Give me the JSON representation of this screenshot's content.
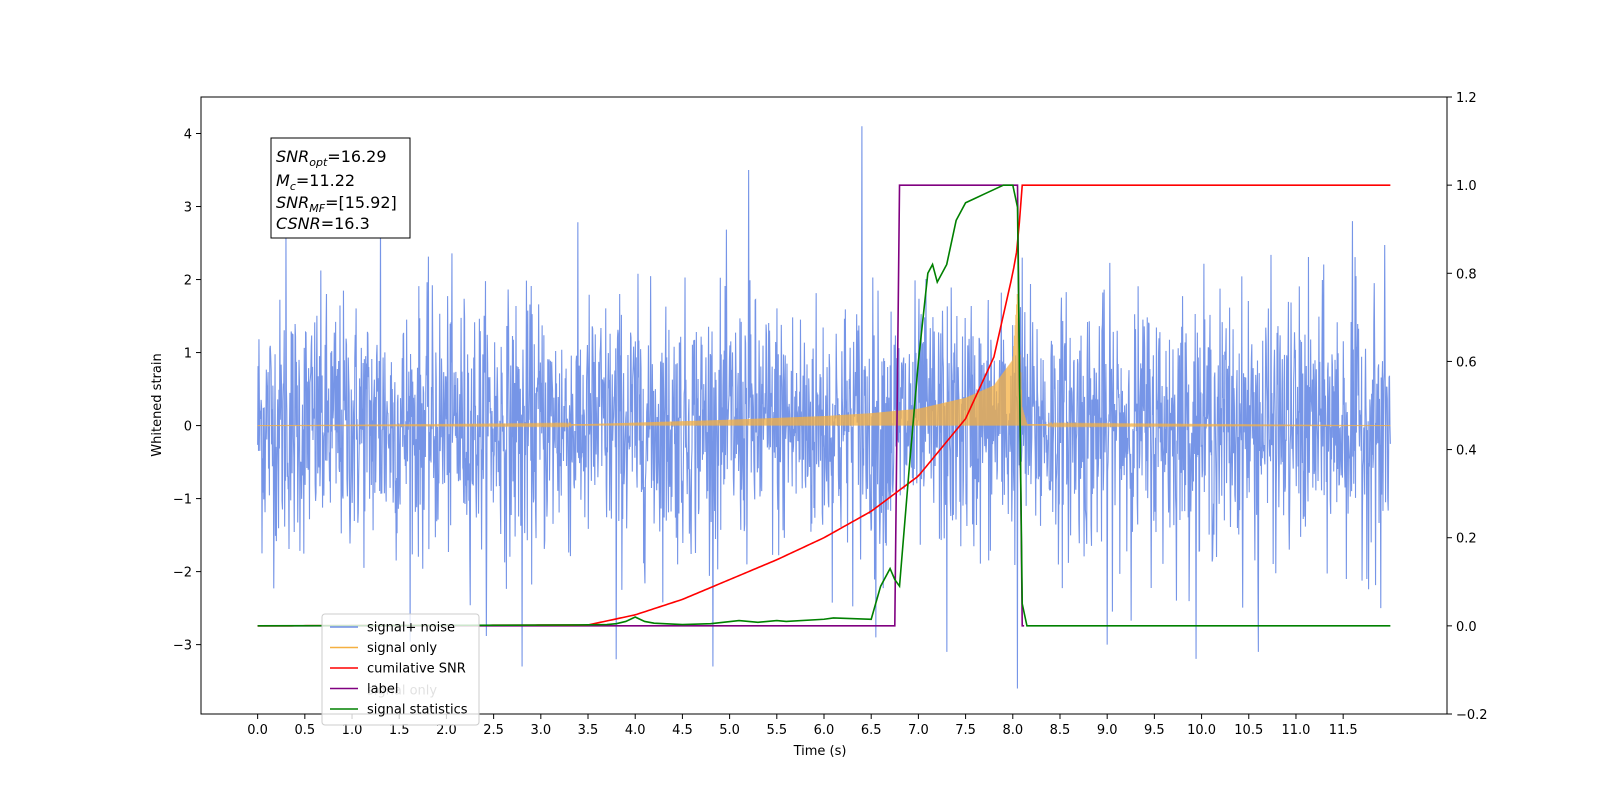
{
  "chart_data": {
    "type": "line",
    "xlabel": "Time (s)",
    "ylabel_left": "Whitened strain",
    "xlim": [
      -0.6,
      12.6
    ],
    "ylim_left": [
      -3.95,
      4.5
    ],
    "ylim_right": [
      -0.2,
      1.2
    ],
    "x_ticks": [
      "0.0",
      "0.5",
      "1.0",
      "1.5",
      "2.0",
      "2.5",
      "3.0",
      "3.5",
      "4.0",
      "4.5",
      "5.0",
      "5.5",
      "6.0",
      "6.5",
      "7.0",
      "7.5",
      "8.0",
      "8.5",
      "9.0",
      "9.5",
      "10.0",
      "10.5",
      "11.0",
      "11.5"
    ],
    "y_ticks_left": [
      "−3",
      "−2",
      "−1",
      "0",
      "1",
      "2",
      "3",
      "4"
    ],
    "y_ticks_right": [
      "−0.2",
      "0.0",
      "0.2",
      "0.4",
      "0.6",
      "0.8",
      "1.0",
      "1.2"
    ],
    "grid": false,
    "legend_position": "lower-left",
    "annotation": {
      "snr_opt_base": "SNR",
      "snr_opt_sub": "opt",
      "snr_opt_value": "=16.29",
      "mc_base": "M",
      "mc_sub": "c",
      "mc_value": "=11.22",
      "snr_mf_base": "SNR",
      "snr_mf_sub": "MF",
      "snr_mf_value": "=[15.92]",
      "csnr_base": "CSNR",
      "csnr_value": "=16.3"
    },
    "series": [
      {
        "name": "signal+ noise",
        "color": "#6f8fe6",
        "axis": "left",
        "x_range": [
          0.0,
          12.0
        ],
        "noise_std": 0.85,
        "peaks": [
          [
            0.3,
            2.6
          ],
          [
            1.3,
            2.9
          ],
          [
            2.8,
            -3.3
          ],
          [
            3.8,
            -3.2
          ],
          [
            5.2,
            3.5
          ],
          [
            6.4,
            4.1
          ],
          [
            6.55,
            -2.9
          ],
          [
            7.3,
            -3.1
          ],
          [
            8.05,
            -3.6
          ],
          [
            8.1,
            2.3
          ],
          [
            9.0,
            -3.0
          ],
          [
            10.6,
            3.1
          ],
          [
            10.6,
            -3.1
          ],
          [
            11.6,
            2.8
          ],
          [
            11.9,
            -2.5
          ]
        ]
      },
      {
        "name": "signal only",
        "color": "#f5b041",
        "axis": "left",
        "envelope_x": [
          0.0,
          2.0,
          3.5,
          5.0,
          6.0,
          6.5,
          7.0,
          7.5,
          7.8,
          8.0,
          8.05,
          8.1,
          8.15,
          12.0
        ],
        "envelope_amp": [
          0.0,
          0.01,
          0.02,
          0.08,
          0.13,
          0.17,
          0.23,
          0.38,
          0.55,
          0.9,
          1.85,
          0.25,
          0.02,
          0.0
        ]
      },
      {
        "name": "cumilative SNR",
        "color": "#ff0000",
        "axis": "right",
        "x": [
          0.0,
          3.5,
          4.0,
          4.5,
          5.0,
          5.5,
          6.0,
          6.5,
          7.0,
          7.5,
          7.8,
          8.0,
          8.05,
          8.1,
          12.0
        ],
        "y": [
          0.0,
          0.002,
          0.025,
          0.06,
          0.105,
          0.15,
          0.2,
          0.26,
          0.34,
          0.47,
          0.61,
          0.8,
          0.86,
          1.0,
          1.0
        ]
      },
      {
        "name": "label",
        "color": "#800080",
        "axis": "right",
        "x": [
          0.0,
          6.75,
          6.8,
          8.05,
          8.1,
          8.12
        ],
        "y": [
          0.0,
          0.0,
          1.0,
          1.0,
          0.0,
          0.0
        ]
      },
      {
        "name": "signal statistics",
        "color": "#008000",
        "axis": "right",
        "x": [
          0.0,
          3.4,
          3.7,
          3.8,
          3.9,
          4.0,
          4.1,
          4.2,
          4.5,
          4.8,
          5.1,
          5.3,
          5.5,
          5.6,
          6.0,
          6.1,
          6.5,
          6.6,
          6.7,
          6.75,
          6.8,
          6.9,
          7.0,
          7.1,
          7.15,
          7.2,
          7.3,
          7.4,
          7.5,
          7.6,
          7.7,
          7.8,
          7.9,
          8.0,
          8.05,
          8.1,
          8.15,
          12.0
        ],
        "y": [
          0.0,
          0.002,
          0.003,
          0.005,
          0.01,
          0.02,
          0.01,
          0.006,
          0.003,
          0.005,
          0.012,
          0.008,
          0.012,
          0.01,
          0.015,
          0.018,
          0.015,
          0.09,
          0.13,
          0.105,
          0.09,
          0.35,
          0.6,
          0.8,
          0.82,
          0.78,
          0.82,
          0.92,
          0.96,
          0.97,
          0.98,
          0.99,
          1.0,
          1.0,
          0.95,
          0.05,
          0.0,
          0.0
        ]
      }
    ],
    "legend_entries": [
      {
        "name": "signal+ noise",
        "color": "#6f8fe6"
      },
      {
        "name": "signal only",
        "color": "#f5b041"
      },
      {
        "name": "cumilative SNR",
        "color": "#ff0000"
      },
      {
        "name": "label",
        "color": "#800080"
      },
      {
        "name": "signal statistics",
        "color": "#008000"
      }
    ],
    "hidden_label": "signal only"
  }
}
